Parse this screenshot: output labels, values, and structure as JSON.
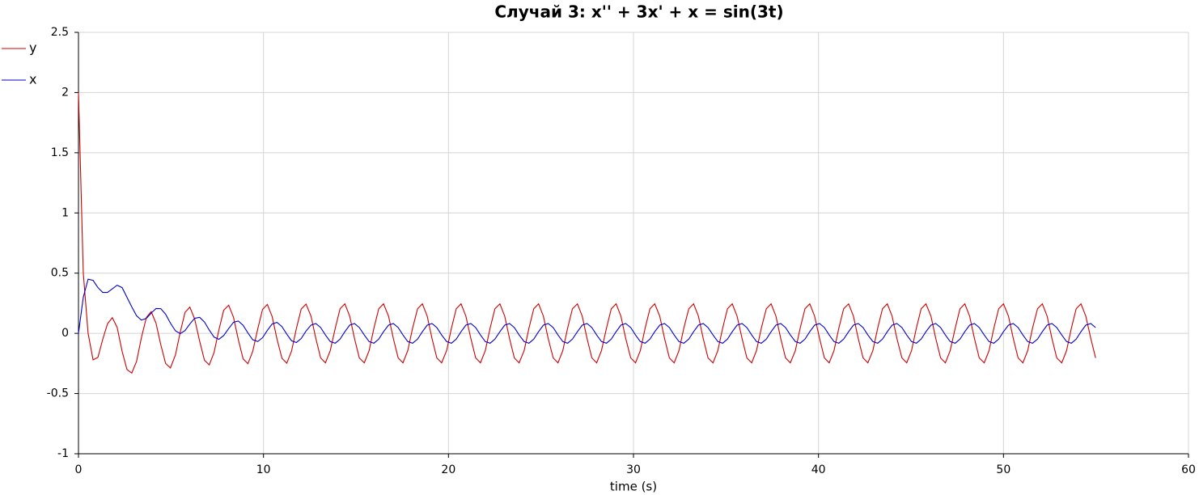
{
  "chart_data": {
    "type": "line",
    "title": "Случай 3: x'' + 3x' + x = sin(3t)",
    "x_label": "time (s)",
    "xlim": [
      0,
      60
    ],
    "xticks": [
      0,
      10,
      20,
      30,
      40,
      50,
      60
    ],
    "ylim": [
      -1,
      2.5
    ],
    "yticks": [
      -1,
      -0.5,
      0,
      0.5,
      1,
      1.5,
      2,
      2.5
    ],
    "grid": true,
    "legend": "top-left",
    "x": [
      0,
      0.26,
      0.52,
      0.79,
      1.05,
      1.31,
      1.57,
      1.83,
      2.09,
      2.36,
      2.62,
      2.88,
      3.14,
      3.4,
      3.67,
      3.93,
      4.19,
      4.45,
      4.71,
      4.97,
      5.24,
      5.5,
      5.76,
      6.02,
      6.28,
      6.55,
      6.81,
      7.07,
      7.33,
      7.59,
      7.85,
      8.12,
      8.38,
      8.64,
      8.9,
      9.16,
      9.42,
      9.69,
      9.95,
      10.21,
      10.47,
      10.73,
      11.0,
      11.26,
      11.52,
      11.78,
      12.04,
      12.3,
      12.57,
      12.83,
      13.09,
      13.35,
      13.61,
      13.88,
      14.14,
      14.4,
      14.66,
      14.92,
      15.18,
      15.45,
      15.71,
      15.97,
      16.23,
      16.49,
      16.76,
      17.02,
      17.28,
      17.54,
      17.8,
      18.06,
      18.33,
      18.59,
      18.85,
      19.11,
      19.37,
      19.63,
      19.9,
      20.16,
      20.42,
      20.68,
      20.94,
      21.21,
      21.47,
      21.73,
      21.99,
      22.25,
      22.51,
      22.78,
      23.04,
      23.3,
      23.56,
      23.82,
      24.09,
      24.35,
      24.61,
      24.87,
      25.13,
      25.39,
      25.66,
      25.92,
      26.18,
      26.44,
      26.7,
      26.97,
      27.23,
      27.49,
      27.75,
      28.01,
      28.27,
      28.54,
      28.8,
      29.06,
      29.32,
      29.58,
      29.85,
      30.11,
      30.37,
      30.63,
      30.89,
      31.15,
      31.42,
      31.68,
      31.94,
      32.2,
      32.46,
      32.72,
      32.99,
      33.25,
      33.51,
      33.77,
      34.03,
      34.3,
      34.56,
      34.82,
      35.08,
      35.34,
      35.6,
      35.87,
      36.13,
      36.39,
      36.65,
      36.91,
      37.18,
      37.44,
      37.7,
      37.96,
      38.22,
      38.48,
      38.75,
      39.01,
      39.27,
      39.53,
      39.79,
      40.06,
      40.32,
      40.58,
      40.84,
      41.1,
      41.36,
      41.63,
      41.89,
      42.15,
      42.41,
      42.67,
      42.94,
      43.2,
      43.46,
      43.72,
      43.98,
      44.24,
      44.51,
      44.77,
      45.03,
      45.29,
      45.55,
      45.81,
      46.08,
      46.34,
      46.6,
      46.86,
      47.12,
      47.39,
      47.65,
      47.91,
      48.17,
      48.43,
      48.69,
      48.96,
      49.22,
      49.48,
      49.74,
      50.0,
      50.27,
      50.53,
      50.79,
      51.05,
      51.31,
      51.57,
      51.84,
      52.1,
      52.36,
      52.62,
      52.88,
      53.15,
      53.41,
      53.67,
      53.93,
      54.19,
      54.45,
      54.72,
      54.98
    ],
    "series": [
      {
        "name": "y",
        "color": "#cc0000",
        "values": [
          2.0,
          0.5,
          0.0,
          -0.22,
          -0.2,
          -0.05,
          0.08,
          0.13,
          0.05,
          -0.15,
          -0.3,
          -0.33,
          -0.233,
          -0.037,
          0.132,
          0.18,
          0.085,
          -0.095,
          -0.25,
          -0.287,
          -0.18,
          0.01,
          0.174,
          0.218,
          0.119,
          -0.065,
          -0.223,
          -0.262,
          -0.158,
          0.029,
          0.192,
          0.234,
          0.133,
          -0.052,
          -0.212,
          -0.252,
          -0.149,
          0.037,
          0.199,
          0.24,
          0.139,
          -0.047,
          -0.207,
          -0.248,
          -0.146,
          0.041,
          0.202,
          0.243,
          0.143,
          -0.043,
          -0.204,
          -0.245,
          -0.143,
          0.043,
          0.204,
          0.245,
          0.143,
          -0.043,
          -0.204,
          -0.245,
          -0.143,
          0.043,
          0.204,
          0.245,
          0.143,
          -0.043,
          -0.204,
          -0.245,
          -0.143,
          0.043,
          0.204,
          0.245,
          0.143,
          -0.043,
          -0.204,
          -0.245,
          -0.143,
          0.043,
          0.204,
          0.245,
          0.143,
          -0.043,
          -0.204,
          -0.245,
          -0.143,
          0.043,
          0.204,
          0.245,
          0.143,
          -0.043,
          -0.204,
          -0.245,
          -0.143,
          0.043,
          0.204,
          0.245,
          0.143,
          -0.043,
          -0.204,
          -0.245,
          -0.143,
          0.043,
          0.204,
          0.245,
          0.143,
          -0.043,
          -0.204,
          -0.245,
          -0.143,
          0.043,
          0.204,
          0.245,
          0.143,
          -0.043,
          -0.204,
          -0.245,
          -0.143,
          0.043,
          0.204,
          0.245,
          0.143,
          -0.043,
          -0.204,
          -0.245,
          -0.143,
          0.043,
          0.204,
          0.245,
          0.143,
          -0.043,
          -0.204,
          -0.245,
          -0.143,
          0.043,
          0.204,
          0.245,
          0.143,
          -0.043,
          -0.204,
          -0.245,
          -0.143,
          0.043,
          0.204,
          0.245,
          0.143,
          -0.043,
          -0.204,
          -0.245,
          -0.143,
          0.043,
          0.204,
          0.245,
          0.143,
          -0.043,
          -0.204,
          -0.245,
          -0.143,
          0.043,
          0.204,
          0.245,
          0.143,
          -0.043,
          -0.204,
          -0.245,
          -0.143,
          0.043,
          0.204,
          0.245,
          0.143,
          -0.043,
          -0.204,
          -0.245,
          -0.143,
          0.043,
          0.204,
          0.245,
          0.143,
          -0.043,
          -0.204,
          -0.245,
          -0.143,
          0.043,
          0.204,
          0.245,
          0.143,
          -0.043,
          -0.204,
          -0.245,
          -0.143,
          0.043,
          0.204,
          0.245,
          0.143,
          -0.043,
          -0.204,
          -0.245,
          -0.143,
          0.043,
          0.204,
          0.245,
          0.143,
          -0.043,
          -0.204,
          -0.245,
          -0.143,
          0.043,
          0.204,
          0.245,
          0.143,
          -0.043,
          -0.204
        ]
      },
      {
        "name": "x",
        "color": "#0000cc",
        "values": [
          0,
          0.3,
          0.45,
          0.44,
          0.38,
          0.34,
          0.34,
          0.37,
          0.4,
          0.38,
          0.3,
          0.22,
          0.146,
          0.11,
          0.124,
          0.168,
          0.206,
          0.205,
          0.159,
          0.085,
          0.021,
          -0.002,
          0.023,
          0.078,
          0.125,
          0.133,
          0.094,
          0.027,
          -0.031,
          -0.049,
          -0.018,
          0.04,
          0.092,
          0.103,
          0.067,
          0.003,
          -0.053,
          -0.068,
          -0.036,
          0.025,
          0.078,
          0.091,
          0.056,
          -0.007,
          -0.062,
          -0.076,
          -0.043,
          0.019,
          0.068,
          0.082,
          0.048,
          -0.014,
          -0.068,
          -0.082,
          -0.048,
          0.014,
          0.068,
          0.082,
          0.048,
          -0.014,
          -0.068,
          -0.082,
          -0.048,
          0.014,
          0.068,
          0.082,
          0.048,
          -0.014,
          -0.068,
          -0.082,
          -0.048,
          0.014,
          0.068,
          0.082,
          0.048,
          -0.014,
          -0.068,
          -0.082,
          -0.048,
          0.014,
          0.068,
          0.082,
          0.048,
          -0.014,
          -0.068,
          -0.082,
          -0.048,
          0.014,
          0.068,
          0.082,
          0.048,
          -0.014,
          -0.068,
          -0.082,
          -0.048,
          0.014,
          0.068,
          0.082,
          0.048,
          -0.014,
          -0.068,
          -0.082,
          -0.048,
          0.014,
          0.068,
          0.082,
          0.048,
          -0.014,
          -0.068,
          -0.082,
          -0.048,
          0.014,
          0.068,
          0.082,
          0.048,
          -0.014,
          -0.068,
          -0.082,
          -0.048,
          0.014,
          0.068,
          0.082,
          0.048,
          -0.014,
          -0.068,
          -0.082,
          -0.048,
          0.014,
          0.068,
          0.082,
          0.048,
          -0.014,
          -0.068,
          -0.082,
          -0.048,
          0.014,
          0.068,
          0.082,
          0.048,
          -0.014,
          -0.068,
          -0.082,
          -0.048,
          0.014,
          0.068,
          0.082,
          0.048,
          -0.014,
          -0.068,
          -0.082,
          -0.048,
          0.014,
          0.068,
          0.082,
          0.048,
          -0.014,
          -0.068,
          -0.082,
          -0.048,
          0.014,
          0.068,
          0.082,
          0.048,
          -0.014,
          -0.068,
          -0.082,
          -0.048,
          0.014,
          0.068,
          0.082,
          0.048,
          -0.014,
          -0.068,
          -0.082,
          -0.048,
          0.014,
          0.068,
          0.082,
          0.048,
          -0.014,
          -0.068,
          -0.082,
          -0.048,
          0.014,
          0.068,
          0.082,
          0.048,
          -0.014,
          -0.068,
          -0.082,
          -0.048,
          0.014,
          0.068,
          0.082,
          0.048,
          -0.014,
          -0.068,
          -0.082,
          -0.048,
          0.014,
          0.068,
          0.082,
          0.048,
          -0.014,
          -0.068,
          -0.082,
          -0.048,
          0.014,
          0.068,
          0.082,
          0.048
        ]
      }
    ]
  }
}
